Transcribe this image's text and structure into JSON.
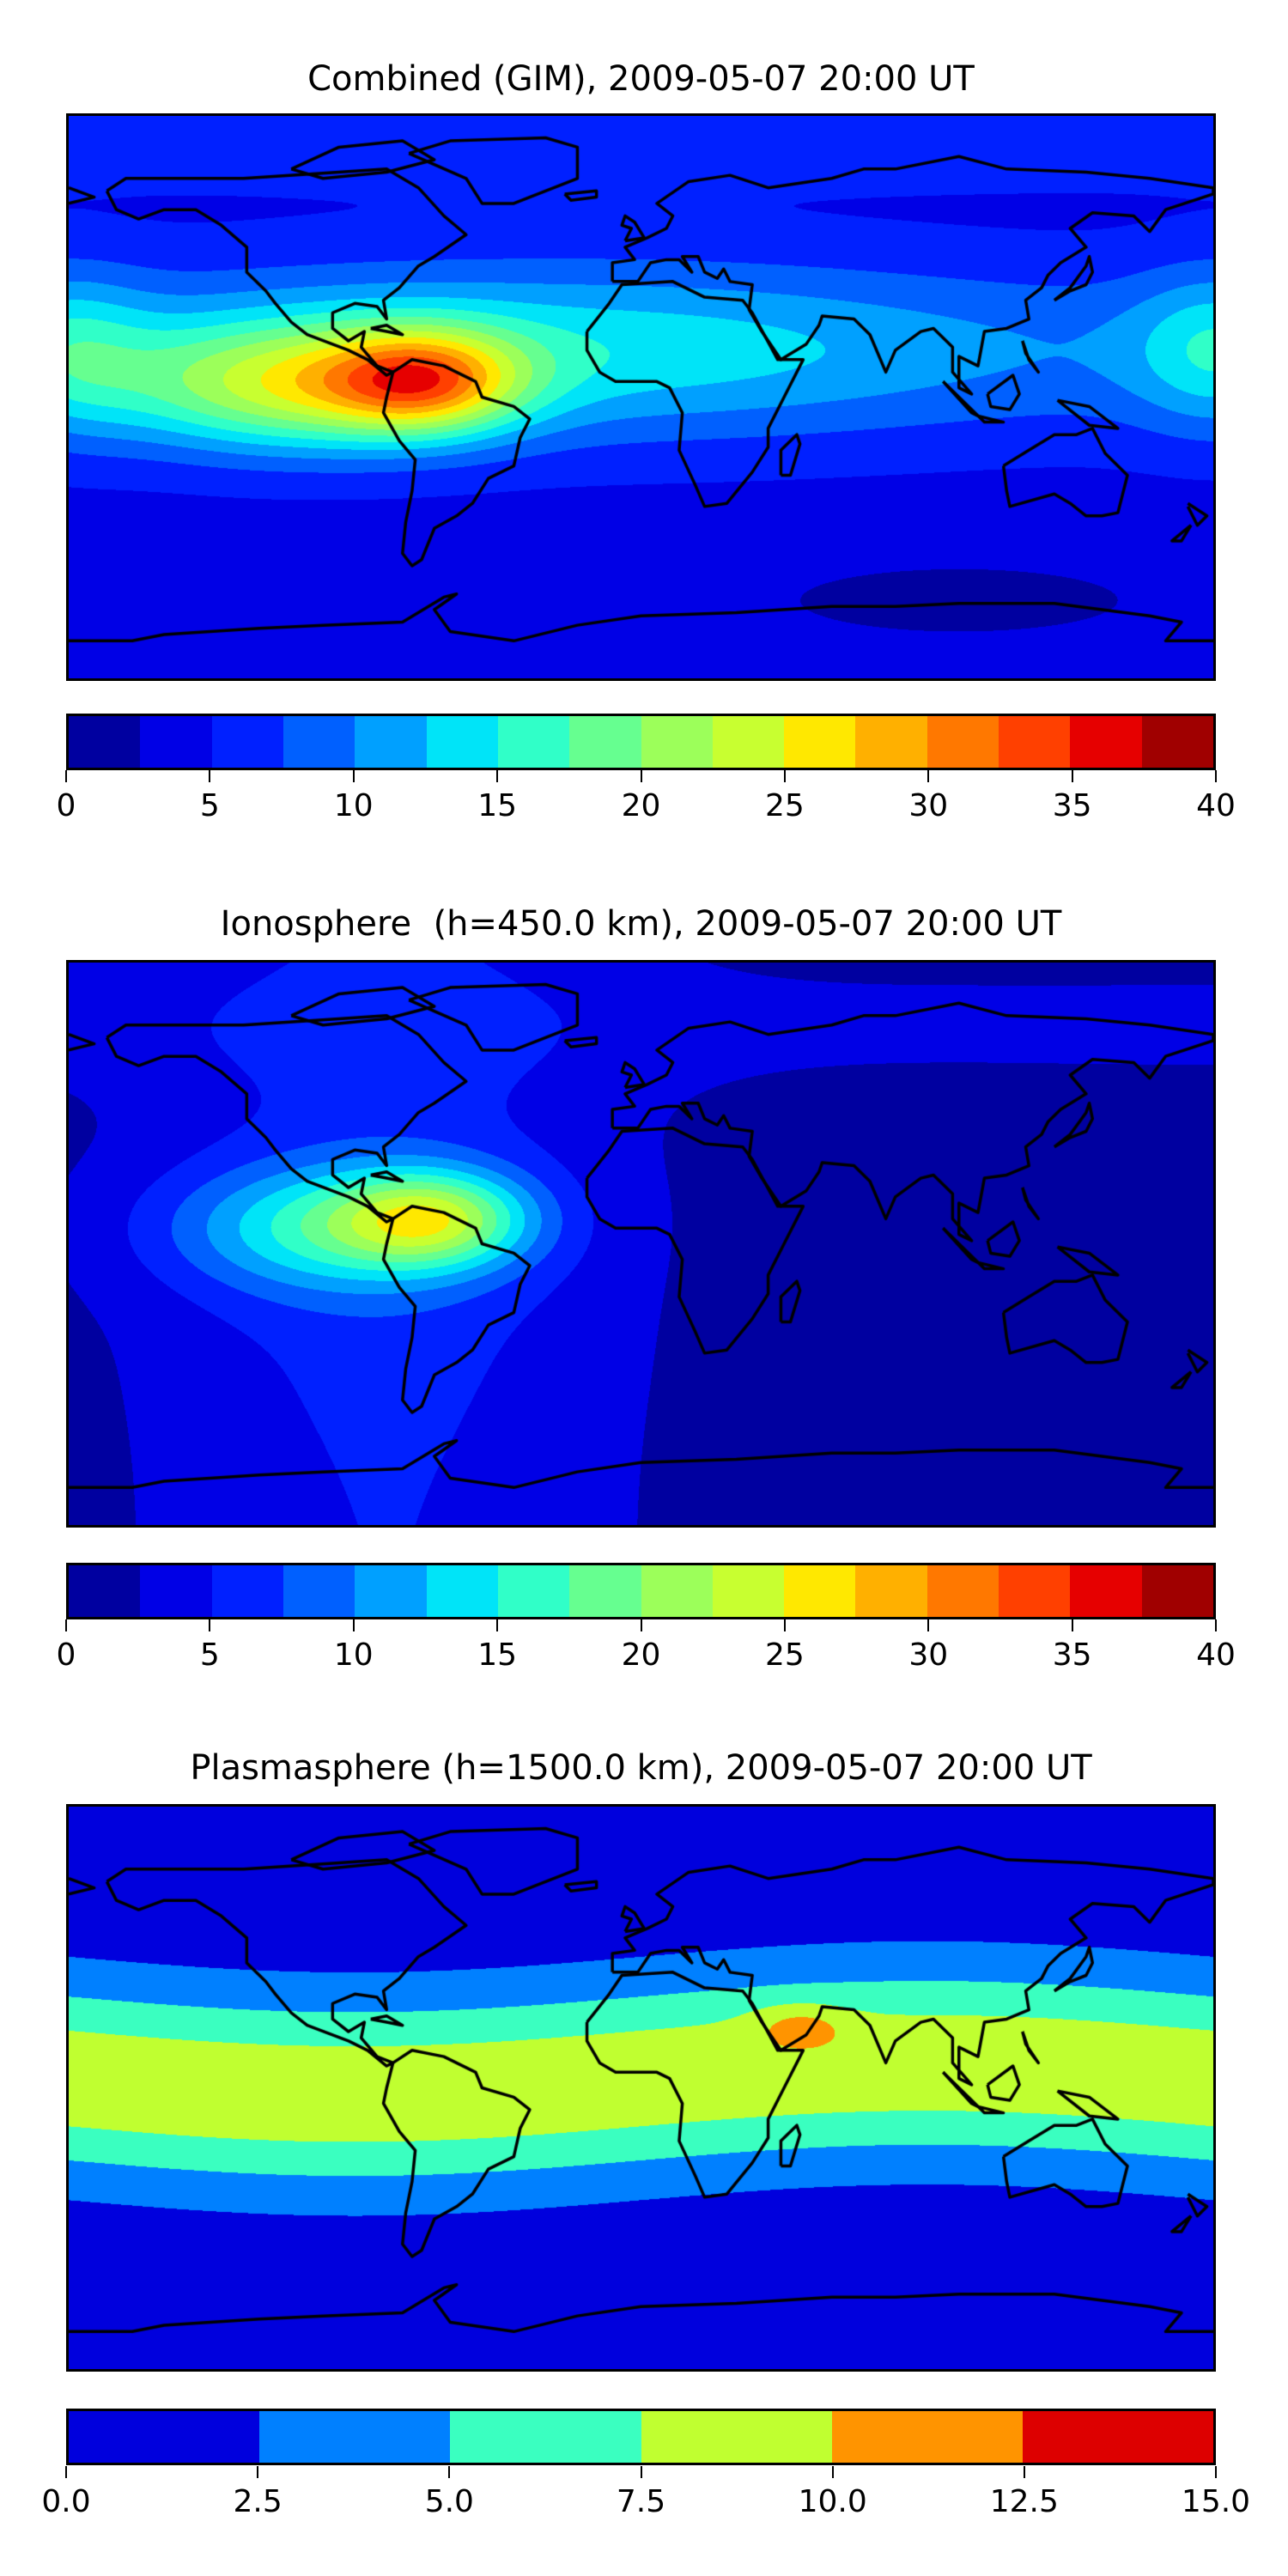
{
  "chart_data": [
    {
      "type": "heatmap",
      "subtype": "filled-contour world map",
      "title": "Combined (GIM), 2009-05-07 20:00 UT",
      "projection": "equirectangular",
      "lon_range": [
        -180,
        180
      ],
      "lat_range": [
        -90,
        90
      ],
      "levels": [
        0,
        2.5,
        5,
        7.5,
        10,
        12.5,
        15,
        17.5,
        20,
        22.5,
        25,
        27.5,
        30,
        32.5,
        35,
        37.5,
        40
      ],
      "colors": [
        "#0000a0",
        "#0000e6",
        "#0020ff",
        "#0060ff",
        "#00a0ff",
        "#00e4f8",
        "#30ffc8",
        "#66ff90",
        "#9cff5a",
        "#c8ff30",
        "#ffe800",
        "#ffb000",
        "#ff7800",
        "#ff4000",
        "#e60000",
        "#a00000"
      ],
      "colorbar_ticks": [
        "0",
        "5",
        "10",
        "15",
        "20",
        "25",
        "30",
        "35",
        "40"
      ],
      "colorbar_tick_values": [
        0,
        5,
        10,
        15,
        20,
        25,
        30,
        35,
        40
      ],
      "features": {
        "peak_value": 35,
        "peak_location": "northern South America",
        "minimum_region": "south Indian / Pacific ocean near Antarctica"
      }
    },
    {
      "type": "heatmap",
      "subtype": "filled-contour world map",
      "title": "Ionosphere  (h=450.0 km), 2009-05-07 20:00 UT",
      "projection": "equirectangular",
      "lon_range": [
        -180,
        180
      ],
      "lat_range": [
        -90,
        90
      ],
      "levels": [
        0,
        2.5,
        5,
        7.5,
        10,
        12.5,
        15,
        17.5,
        20,
        22.5,
        25,
        27.5,
        30,
        32.5,
        35,
        37.5,
        40
      ],
      "colors": [
        "#0000a0",
        "#0000e6",
        "#0020ff",
        "#0060ff",
        "#00a0ff",
        "#00e4f8",
        "#30ffc8",
        "#66ff90",
        "#9cff5a",
        "#c8ff30",
        "#ffe800",
        "#ffb000",
        "#ff7800",
        "#ff4000",
        "#e60000",
        "#a00000"
      ],
      "colorbar_ticks": [
        "0",
        "5",
        "10",
        "15",
        "20",
        "25",
        "30",
        "35",
        "40"
      ],
      "colorbar_tick_values": [
        0,
        5,
        10,
        15,
        20,
        25,
        30,
        35,
        40
      ],
      "features": {
        "peak_value": 25,
        "peak_location": "northern South America",
        "minimum_region": "eastern hemisphere"
      }
    },
    {
      "type": "heatmap",
      "subtype": "filled-contour world map",
      "title": "Plasmasphere (h=1500.0 km), 2009-05-07 20:00 UT",
      "projection": "equirectangular",
      "lon_range": [
        -180,
        180
      ],
      "lat_range": [
        -90,
        90
      ],
      "levels": [
        0,
        2.5,
        5,
        7.5,
        10,
        12.5,
        15
      ],
      "colors": [
        "#0000dd",
        "#0080ff",
        "#3affc0",
        "#c0ff30",
        "#ff9400",
        "#dd0000"
      ],
      "colorbar_ticks": [
        "0.0",
        "2.5",
        "5.0",
        "7.5",
        "10.0",
        "12.5",
        "15.0"
      ],
      "colorbar_tick_values": [
        0,
        2.5,
        5,
        7.5,
        10,
        12.5,
        15
      ],
      "features": {
        "peak_value": 10,
        "peak_location": "Arabian Peninsula",
        "band": "low-latitude band along geomagnetic equator"
      }
    }
  ]
}
